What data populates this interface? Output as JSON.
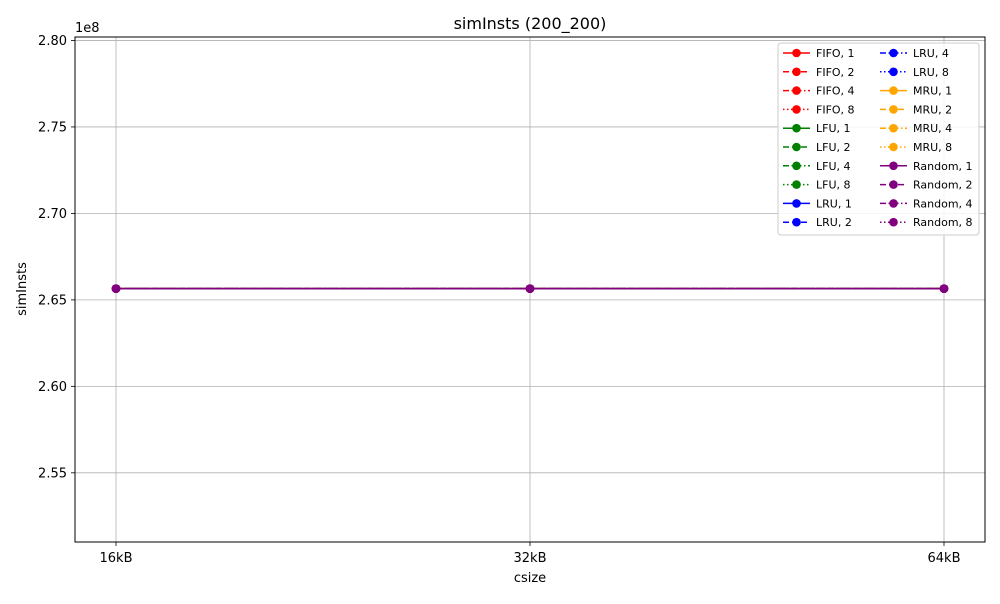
{
  "chart_data": {
    "type": "line",
    "title": "simInsts (200_200)",
    "xlabel": "csize",
    "ylabel": "simInsts",
    "offset_label": "1e8",
    "categories": [
      "16kB",
      "32kB",
      "64kB"
    ],
    "ylim": [
      2.51,
      2.802
    ],
    "yticks": [
      2.55,
      2.6,
      2.65,
      2.7,
      2.75,
      2.8
    ],
    "ytick_labels": [
      "2.55",
      "2.60",
      "2.65",
      "2.70",
      "2.75",
      "2.80"
    ],
    "grid": true,
    "legend_position": "top-right",
    "legend_columns": 2,
    "series": [
      {
        "name": "FIFO, 1",
        "color": "#ff0000",
        "linestyle": "solid",
        "values": [
          2.6565,
          2.6565,
          2.6565
        ]
      },
      {
        "name": "FIFO, 2",
        "color": "#ff0000",
        "linestyle": "dashed",
        "values": [
          2.6565,
          2.6565,
          2.6565
        ]
      },
      {
        "name": "FIFO, 4",
        "color": "#ff0000",
        "linestyle": "dashdot",
        "values": [
          2.6565,
          2.6565,
          2.6565
        ]
      },
      {
        "name": "FIFO, 8",
        "color": "#ff0000",
        "linestyle": "dotted",
        "values": [
          2.6565,
          2.6565,
          2.6565
        ]
      },
      {
        "name": "LFU, 1",
        "color": "#008000",
        "linestyle": "solid",
        "values": [
          2.6565,
          2.6565,
          2.6565
        ]
      },
      {
        "name": "LFU, 2",
        "color": "#008000",
        "linestyle": "dashed",
        "values": [
          2.6565,
          2.6565,
          2.6565
        ]
      },
      {
        "name": "LFU, 4",
        "color": "#008000",
        "linestyle": "dashdot",
        "values": [
          2.6565,
          2.6565,
          2.6565
        ]
      },
      {
        "name": "LFU, 8",
        "color": "#008000",
        "linestyle": "dotted",
        "values": [
          2.6565,
          2.6565,
          2.6565
        ]
      },
      {
        "name": "LRU, 1",
        "color": "#0000ff",
        "linestyle": "solid",
        "values": [
          2.6565,
          2.6565,
          2.6565
        ]
      },
      {
        "name": "LRU, 2",
        "color": "#0000ff",
        "linestyle": "dashed",
        "values": [
          2.6565,
          2.6565,
          2.6565
        ]
      },
      {
        "name": "LRU, 4",
        "color": "#0000ff",
        "linestyle": "dashdot",
        "values": [
          2.6565,
          2.6565,
          2.6565
        ]
      },
      {
        "name": "LRU, 8",
        "color": "#0000ff",
        "linestyle": "dotted",
        "values": [
          2.6565,
          2.6565,
          2.6565
        ]
      },
      {
        "name": "MRU, 1",
        "color": "#ffa500",
        "linestyle": "solid",
        "values": [
          2.6565,
          2.6565,
          2.6565
        ]
      },
      {
        "name": "MRU, 2",
        "color": "#ffa500",
        "linestyle": "dashed",
        "values": [
          2.6565,
          2.6565,
          2.6565
        ]
      },
      {
        "name": "MRU, 4",
        "color": "#ffa500",
        "linestyle": "dashdot",
        "values": [
          2.6565,
          2.6565,
          2.6565
        ]
      },
      {
        "name": "MRU, 8",
        "color": "#ffa500",
        "linestyle": "dotted",
        "values": [
          2.6565,
          2.6565,
          2.6565
        ]
      },
      {
        "name": "Random, 1",
        "color": "#800080",
        "linestyle": "solid",
        "values": [
          2.6565,
          2.6565,
          2.6565
        ]
      },
      {
        "name": "Random, 2",
        "color": "#800080",
        "linestyle": "dashed",
        "values": [
          2.6565,
          2.6565,
          2.6565
        ]
      },
      {
        "name": "Random, 4",
        "color": "#800080",
        "linestyle": "dashdot",
        "values": [
          2.6565,
          2.6565,
          2.6565
        ]
      },
      {
        "name": "Random, 8",
        "color": "#800080",
        "linestyle": "dotted",
        "values": [
          2.6565,
          2.6565,
          2.6565
        ]
      }
    ]
  }
}
